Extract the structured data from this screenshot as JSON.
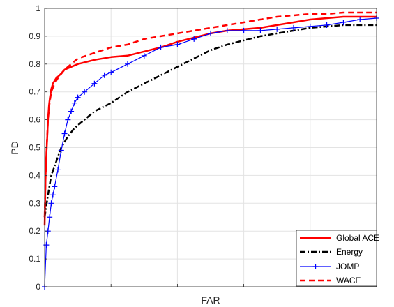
{
  "chart_data": {
    "type": "line",
    "title": "",
    "xlabel": "FAR",
    "ylabel": "PD",
    "ylim": [
      0,
      1
    ],
    "xlim": [
      0,
      1
    ],
    "y_ticks": [
      "0",
      "0.1",
      "0.2",
      "0.3",
      "0.4",
      "0.5",
      "0.6",
      "0.7",
      "0.8",
      "0.9",
      "1"
    ],
    "x_tick_labels": [
      "",
      "",
      "",
      "",
      "",
      ""
    ],
    "grid": true,
    "legend_position": "bottom-right",
    "series": [
      {
        "name": "Global ACE",
        "color": "#ff0000",
        "style": "solid",
        "x": [
          0.0,
          0.003,
          0.005,
          0.008,
          0.01,
          0.013,
          0.016,
          0.02,
          0.025,
          0.03,
          0.035,
          0.045,
          0.06,
          0.08,
          0.1,
          0.15,
          0.2,
          0.25,
          0.3,
          0.35,
          0.4,
          0.45,
          0.5,
          0.55,
          0.6,
          0.65,
          0.7,
          0.75,
          0.8,
          0.9,
          1.0
        ],
        "y": [
          0.22,
          0.4,
          0.47,
          0.54,
          0.6,
          0.65,
          0.68,
          0.71,
          0.73,
          0.74,
          0.75,
          0.76,
          0.78,
          0.79,
          0.8,
          0.815,
          0.825,
          0.83,
          0.845,
          0.86,
          0.88,
          0.895,
          0.91,
          0.92,
          0.925,
          0.93,
          0.94,
          0.95,
          0.96,
          0.97,
          0.97
        ]
      },
      {
        "name": "Energy",
        "color": "#000000",
        "style": "dashdot",
        "x": [
          0.0,
          0.01,
          0.02,
          0.035,
          0.05,
          0.07,
          0.09,
          0.12,
          0.15,
          0.2,
          0.25,
          0.3,
          0.35,
          0.4,
          0.45,
          0.5,
          0.55,
          0.6,
          0.65,
          0.7,
          0.75,
          0.8,
          0.85,
          0.9,
          0.95,
          1.0
        ],
        "y": [
          0.25,
          0.33,
          0.4,
          0.45,
          0.5,
          0.54,
          0.57,
          0.6,
          0.63,
          0.66,
          0.7,
          0.73,
          0.76,
          0.79,
          0.82,
          0.85,
          0.87,
          0.885,
          0.9,
          0.91,
          0.92,
          0.93,
          0.935,
          0.94,
          0.94,
          0.94
        ]
      },
      {
        "name": "JOMP",
        "color": "#0000ff",
        "style": "solid-plus",
        "x": [
          0.0,
          0.005,
          0.01,
          0.015,
          0.02,
          0.025,
          0.03,
          0.04,
          0.05,
          0.06,
          0.07,
          0.08,
          0.09,
          0.1,
          0.12,
          0.15,
          0.18,
          0.2,
          0.25,
          0.3,
          0.35,
          0.4,
          0.45,
          0.5,
          0.55,
          0.6,
          0.65,
          0.7,
          0.75,
          0.8,
          0.85,
          0.9,
          0.95,
          1.0
        ],
        "y": [
          0.0,
          0.15,
          0.2,
          0.25,
          0.3,
          0.33,
          0.36,
          0.42,
          0.49,
          0.55,
          0.6,
          0.63,
          0.66,
          0.68,
          0.7,
          0.73,
          0.76,
          0.77,
          0.8,
          0.83,
          0.86,
          0.87,
          0.89,
          0.91,
          0.92,
          0.92,
          0.92,
          0.925,
          0.93,
          0.935,
          0.94,
          0.95,
          0.96,
          0.965
        ]
      },
      {
        "name": "WACE",
        "color": "#ff0000",
        "style": "dashed",
        "x": [
          0.0,
          0.003,
          0.006,
          0.01,
          0.015,
          0.02,
          0.03,
          0.04,
          0.06,
          0.08,
          0.1,
          0.15,
          0.2,
          0.25,
          0.3,
          0.35,
          0.4,
          0.45,
          0.5,
          0.55,
          0.6,
          0.65,
          0.7,
          0.75,
          0.8,
          0.85,
          0.9,
          1.0
        ],
        "y": [
          0.25,
          0.4,
          0.5,
          0.6,
          0.66,
          0.7,
          0.73,
          0.75,
          0.78,
          0.8,
          0.82,
          0.84,
          0.86,
          0.87,
          0.89,
          0.9,
          0.91,
          0.92,
          0.93,
          0.94,
          0.95,
          0.96,
          0.97,
          0.975,
          0.98,
          0.98,
          0.985,
          0.985
        ]
      }
    ]
  }
}
